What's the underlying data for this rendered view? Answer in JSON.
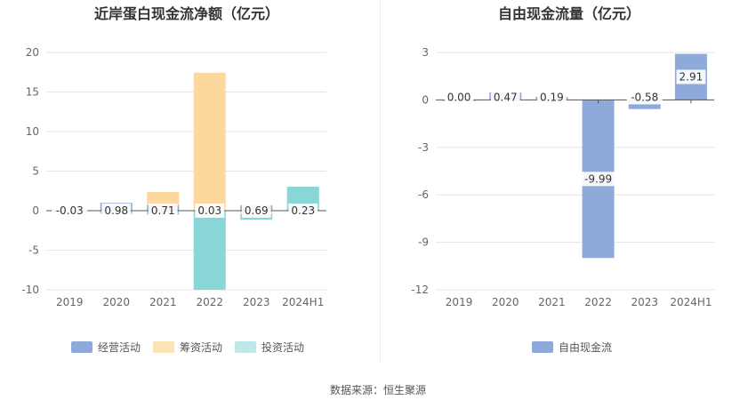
{
  "footer": {
    "source": "数据来源：恒生聚源"
  },
  "chart_data": [
    {
      "type": "bar",
      "stacked": true,
      "title": "近岸蛋白现金流净额（亿元）",
      "categories": [
        "2019",
        "2020",
        "2021",
        "2022",
        "2023",
        "2024H1"
      ],
      "ylim": [
        -10,
        20
      ],
      "yticks": [
        20,
        15,
        10,
        5,
        0,
        -5,
        -10
      ],
      "grid": true,
      "legend_position": "bottom",
      "series": [
        {
          "name": "经营活动",
          "color": "#8eaadb",
          "values": [
            -0.03,
            0.98,
            0.71,
            0.03,
            0.69,
            0.23
          ]
        },
        {
          "name": "筹资活动",
          "color": "#fcd89e",
          "values": [
            0,
            0,
            1.65,
            17.4,
            -0.45,
            0
          ]
        },
        {
          "name": "投资活动",
          "color": "#88d6d8",
          "values": [
            0,
            -0.4,
            -0.5,
            -10.0,
            -0.7,
            2.8
          ]
        }
      ],
      "data_labels": [
        "-0.03",
        "0.98",
        "0.71",
        "0.03",
        "0.69",
        "0.23"
      ]
    },
    {
      "type": "bar",
      "title": "自由现金流量（亿元）",
      "categories": [
        "2019",
        "2020",
        "2021",
        "2022",
        "2023",
        "2024H1"
      ],
      "ylim": [
        -12,
        3
      ],
      "yticks": [
        3,
        0,
        -3,
        -6,
        -9,
        -12
      ],
      "grid": true,
      "legend_position": "bottom",
      "series": [
        {
          "name": "自由现金流",
          "color": "#8eaadb",
          "values": [
            0.0,
            0.47,
            0.19,
            -9.99,
            -0.58,
            2.91
          ]
        }
      ],
      "data_labels": [
        "0.00",
        "0.47",
        "0.19",
        "-9.99",
        "-0.58",
        "2.91"
      ]
    }
  ]
}
